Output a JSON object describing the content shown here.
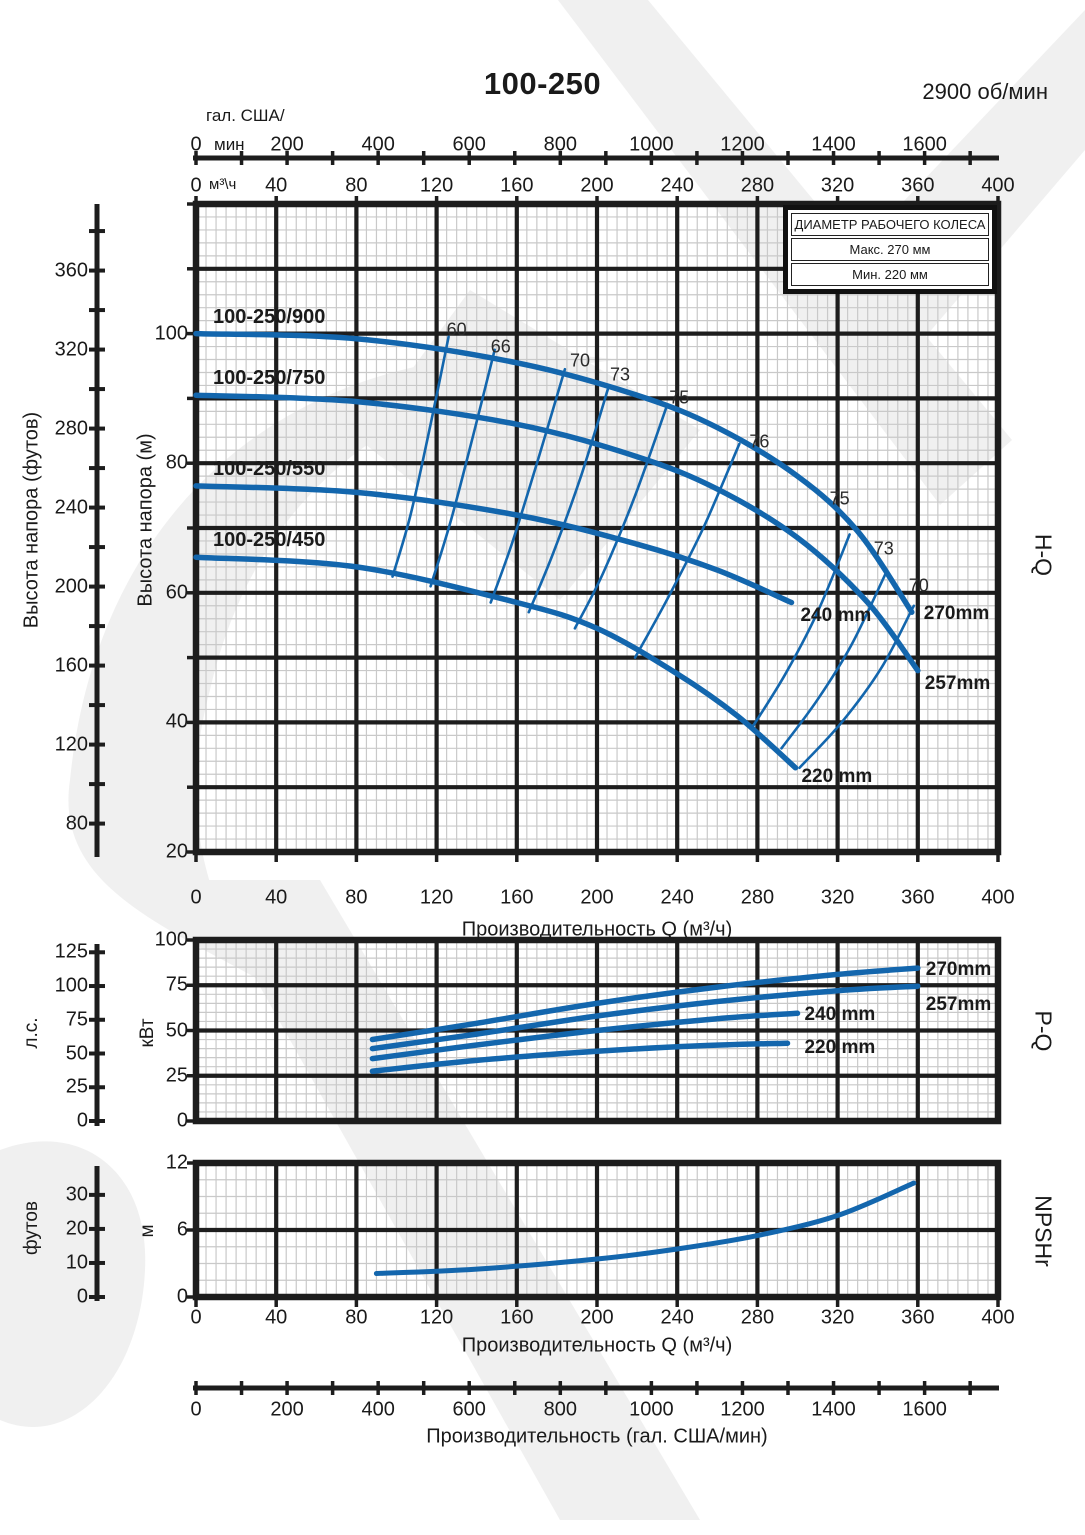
{
  "header": {
    "title": "100-250",
    "speed": "2900 об/мин"
  },
  "legend_box": {
    "header": "ДИАМЕТР РАБОЧЕГО КОЛЕСА",
    "max_row": "Макс. 270 мм",
    "min_row": "Мин. 220 мм"
  },
  "colors": {
    "curve_blue": "#1366ad",
    "grid_major": "#1d1d1d",
    "grid_minor": "#c9c9c9",
    "watermark": "#e4e4e4",
    "text": "#1a1a1a"
  },
  "side_labels": {
    "hq": "H-Q",
    "pq": "P-Q",
    "np": "NPSHr"
  },
  "axes": {
    "gal_top": {
      "unit_line1": "гал. США/",
      "unit_line2": "мин",
      "ticks": [
        0,
        200,
        400,
        600,
        800,
        1000,
        1200,
        1400,
        1600
      ]
    },
    "m3h_top": {
      "unit": "м³\\ч",
      "ticks": [
        0,
        40,
        80,
        120,
        160,
        200,
        240,
        280,
        320,
        360,
        400
      ]
    },
    "hq_m": {
      "label": "Высота напора (м)",
      "ticks": [
        100,
        80,
        60,
        40,
        20
      ]
    },
    "hq_ft": {
      "label": "Высота напора (футов)",
      "ticks": [
        360,
        320,
        280,
        240,
        200,
        160,
        120,
        80
      ]
    },
    "hq_x": {
      "label": "Производительность Q (м³/ч)",
      "ticks": [
        0,
        40,
        80,
        120,
        160,
        200,
        240,
        280,
        320,
        360,
        400
      ]
    },
    "pq_kw": {
      "label": "кВт",
      "ticks": [
        100,
        75,
        50,
        25,
        0
      ]
    },
    "pq_hp": {
      "label": "л.с.",
      "ticks": [
        125,
        100,
        75,
        50,
        25,
        0
      ]
    },
    "np_m": {
      "label": "м",
      "ticks": [
        12,
        6,
        0
      ]
    },
    "np_ft": {
      "label": "футов",
      "ticks": [
        30,
        20,
        10,
        0
      ]
    },
    "np_x": {
      "label": "Производительность Q (м³/ч)",
      "ticks": [
        0,
        40,
        80,
        120,
        160,
        200,
        240,
        280,
        320,
        360,
        400
      ]
    },
    "gal_bottom": {
      "label": "Производительность (гал. США/мин)",
      "ticks": [
        0,
        200,
        400,
        600,
        800,
        1000,
        1200,
        1400,
        1600
      ]
    }
  },
  "chart_data": [
    {
      "type": "line",
      "name": "H-Q",
      "xlabel": "Производительность Q (м³/ч)",
      "ylabel": "Высота напора (м)",
      "xlim": [
        0,
        400
      ],
      "ylim": [
        20,
        120
      ],
      "grid": "on",
      "series": [
        {
          "name": "100-250/900",
          "diameter_label": "270mm",
          "points": [
            [
              0,
              100
            ],
            [
              80,
              99.2
            ],
            [
              160,
              95.5
            ],
            [
              220,
              90.5
            ],
            [
              260,
              85.5
            ],
            [
              300,
              78
            ],
            [
              330,
              69.5
            ],
            [
              357,
              57
            ]
          ]
        },
        {
          "name": "100-250/750",
          "diameter_label": "257mm",
          "points": [
            [
              0,
              90.5
            ],
            [
              80,
              89.5
            ],
            [
              160,
              86
            ],
            [
              220,
              81
            ],
            [
              260,
              76
            ],
            [
              300,
              68.5
            ],
            [
              335,
              58.5
            ],
            [
              360,
              48
            ]
          ]
        },
        {
          "name": "100-250/550",
          "diameter_label": "240 mm",
          "points": [
            [
              0,
              76.5
            ],
            [
              80,
              75.5
            ],
            [
              160,
              72
            ],
            [
              220,
              67.5
            ],
            [
              260,
              63.5
            ],
            [
              297,
              58.5
            ]
          ]
        },
        {
          "name": "100-250/450",
          "diameter_label": "220 mm",
          "points": [
            [
              0,
              65.5
            ],
            [
              80,
              64
            ],
            [
              160,
              58.5
            ],
            [
              200,
              54.5
            ],
            [
              240,
              47.5
            ],
            [
              270,
              41
            ],
            [
              299,
              33
            ]
          ]
        }
      ],
      "efficiency_lines": [
        {
          "label": "60",
          "points": [
            [
              98,
              62.5
            ],
            [
              107,
              72
            ],
            [
              117,
              86
            ],
            [
              126,
              99.5
            ]
          ],
          "label_pos": [
            130,
            100.5
          ]
        },
        {
          "label": "66",
          "points": [
            [
              117,
              61
            ],
            [
              127,
              71
            ],
            [
              138,
              84
            ],
            [
              149,
              97.5
            ]
          ],
          "label_pos": [
            152,
            98
          ]
        },
        {
          "label": "70",
          "points": [
            [
              147,
              58.5
            ],
            [
              158,
              68
            ],
            [
              171,
              81
            ],
            [
              184,
              94.5
            ]
          ],
          "label_pos": [
            191.5,
            95.7
          ]
        },
        {
          "label": "73",
          "points": [
            [
              166,
              57
            ],
            [
              178,
              66
            ],
            [
              192,
              78
            ],
            [
              206,
              92
            ]
          ],
          "label_pos": [
            211.5,
            93.6
          ]
        },
        {
          "label": "75",
          "points": [
            [
              189,
              54.5
            ],
            [
              203,
              63
            ],
            [
              219,
              75
            ],
            [
              235,
              89
            ]
          ],
          "label_pos": [
            241,
            90
          ]
        },
        {
          "label": "76",
          "points": [
            [
              219,
              50
            ],
            [
              235,
              59
            ],
            [
              253,
              70
            ],
            [
              271,
              83
            ]
          ],
          "label_pos": [
            281,
            83.3
          ]
        },
        {
          "label": "75",
          "points": [
            [
              278,
              39.5
            ],
            [
              294,
              47.5
            ],
            [
              310,
              57
            ],
            [
              326,
              69
            ]
          ],
          "label_pos": [
            321,
            74.5
          ]
        },
        {
          "label": "73",
          "points": [
            [
              292,
              36
            ],
            [
              310,
              43.5
            ],
            [
              327,
              52
            ],
            [
              344,
              63
            ]
          ],
          "label_pos": [
            343,
            66.8
          ]
        },
        {
          "label": "70",
          "points": [
            [
              301,
              33
            ],
            [
              322,
              40
            ],
            [
              342,
              48.5
            ],
            [
              358,
              58
            ]
          ],
          "label_pos": [
            360.5,
            61
          ]
        }
      ]
    },
    {
      "type": "line",
      "name": "P-Q",
      "ylabel": "кВт",
      "xlim": [
        0,
        400
      ],
      "ylim": [
        0,
        100
      ],
      "grid": "on",
      "series": [
        {
          "name": "270mm",
          "points": [
            [
              88,
              45
            ],
            [
              140,
              54
            ],
            [
              200,
              65
            ],
            [
              260,
              74
            ],
            [
              320,
              81
            ],
            [
              360,
              84.5
            ]
          ]
        },
        {
          "name": "257mm",
          "points": [
            [
              88,
              40
            ],
            [
              140,
              48
            ],
            [
              200,
              58
            ],
            [
              260,
              66
            ],
            [
              320,
              72
            ],
            [
              360,
              74.5
            ]
          ]
        },
        {
          "name": "240 mm",
          "points": [
            [
              88,
              34.5
            ],
            [
              140,
              42
            ],
            [
              200,
              50
            ],
            [
              260,
              56.5
            ],
            [
              300,
              59.5
            ]
          ]
        },
        {
          "name": "220 mm",
          "points": [
            [
              88,
              27.5
            ],
            [
              140,
              33.5
            ],
            [
              200,
              38.5
            ],
            [
              250,
              41.5
            ],
            [
              295,
              43
            ]
          ]
        }
      ]
    },
    {
      "type": "line",
      "name": "NPSHr",
      "ylabel": "м",
      "xlim": [
        0,
        400
      ],
      "ylim": [
        0,
        12
      ],
      "grid": "on",
      "series": [
        {
          "name": "NPSHr",
          "points": [
            [
              90,
              2.1
            ],
            [
              140,
              2.5
            ],
            [
              200,
              3.4
            ],
            [
              240,
              4.3
            ],
            [
              280,
              5.5
            ],
            [
              320,
              7.3
            ],
            [
              358,
              10.2
            ]
          ]
        }
      ]
    }
  ]
}
